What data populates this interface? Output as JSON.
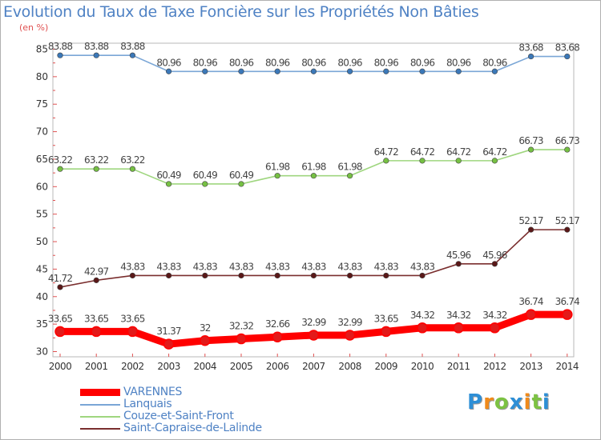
{
  "title": "Evolution du Taux de Taxe Foncière sur les Propriétés Non Bâties",
  "unit_label": "(en %)",
  "chart_data": {
    "type": "line",
    "title": "Evolution du Taux de Taxe Foncière sur les Propriétés Non Bâties",
    "ylabel": "(en %)",
    "xlabel": "",
    "ylim": [
      30,
      85
    ],
    "yticks": [
      30,
      35,
      40,
      45,
      50,
      55,
      60,
      65,
      70,
      75,
      80,
      85
    ],
    "categories": [
      "2000",
      "2001",
      "2002",
      "2003",
      "2004",
      "2005",
      "2006",
      "2007",
      "2008",
      "2009",
      "2010",
      "2011",
      "2012",
      "2013",
      "2014"
    ],
    "series": [
      {
        "name": "VARENNES",
        "color": "#ff0000",
        "marker_fill": "#e31a1a",
        "values": [
          33.65,
          33.65,
          33.65,
          31.37,
          32,
          32.32,
          32.66,
          32.99,
          32.99,
          33.65,
          34.32,
          34.32,
          34.32,
          36.74,
          36.74
        ],
        "labels": [
          "33.65",
          "33.65",
          "33.65",
          "31.37",
          "32",
          "32.32",
          "32.66",
          "32.99",
          "32.99",
          "33.65",
          "34.32",
          "34.32",
          "34.32",
          "36.74",
          "36.74"
        ]
      },
      {
        "name": "Lanquais",
        "color": "#7aa6d6",
        "marker_fill": "#3b78b8",
        "values": [
          83.88,
          83.88,
          83.88,
          80.96,
          80.96,
          80.96,
          80.96,
          80.96,
          80.96,
          80.96,
          80.96,
          80.96,
          80.96,
          83.68,
          83.68
        ],
        "labels": [
          "83.88",
          "83.88",
          "83.88",
          "80.96",
          "80.96",
          "80.96",
          "80.96",
          "80.96",
          "80.96",
          "80.96",
          "80.96",
          "80.96",
          "80.96",
          "83.68",
          "83.68"
        ]
      },
      {
        "name": "Couze-et-Saint-Front",
        "color": "#9fd67f",
        "marker_fill": "#76c043",
        "values": [
          63.22,
          63.22,
          63.22,
          60.49,
          60.49,
          60.49,
          61.98,
          61.98,
          61.98,
          64.72,
          64.72,
          64.72,
          64.72,
          66.73,
          66.73
        ],
        "labels": [
          "63.22",
          "63.22",
          "63.22",
          "60.49",
          "60.49",
          "60.49",
          "61.98",
          "61.98",
          "61.98",
          "64.72",
          "64.72",
          "64.72",
          "64.72",
          "66.73",
          "66.73"
        ]
      },
      {
        "name": "Saint-Capraise-de-Lalinde",
        "color": "#7a2e2e",
        "marker_fill": "#5a1818",
        "values": [
          41.72,
          42.97,
          43.83,
          43.83,
          43.83,
          43.83,
          43.83,
          43.83,
          43.83,
          43.83,
          43.83,
          45.96,
          45.96,
          52.17,
          52.17
        ],
        "labels": [
          "41.72",
          "42.97",
          "43.83",
          "43.83",
          "43.83",
          "43.83",
          "43.83",
          "43.83",
          "43.83",
          "43.83",
          "43.83",
          "45.96",
          "45.96",
          "52.17",
          "52.17"
        ]
      }
    ],
    "legend": "bottom-left",
    "grid": false
  },
  "logo": {
    "letters": [
      {
        "ch": "P",
        "color": "#2e8fd6"
      },
      {
        "ch": "r",
        "color": "#f08a1a"
      },
      {
        "ch": "o",
        "color": "#7cc243"
      },
      {
        "ch": "x",
        "color": "#2e8fd6"
      },
      {
        "ch": "i",
        "color": "#f08a1a"
      },
      {
        "ch": "t",
        "color": "#7cc243"
      },
      {
        "ch": "i",
        "color": "#2e8fd6"
      }
    ]
  }
}
